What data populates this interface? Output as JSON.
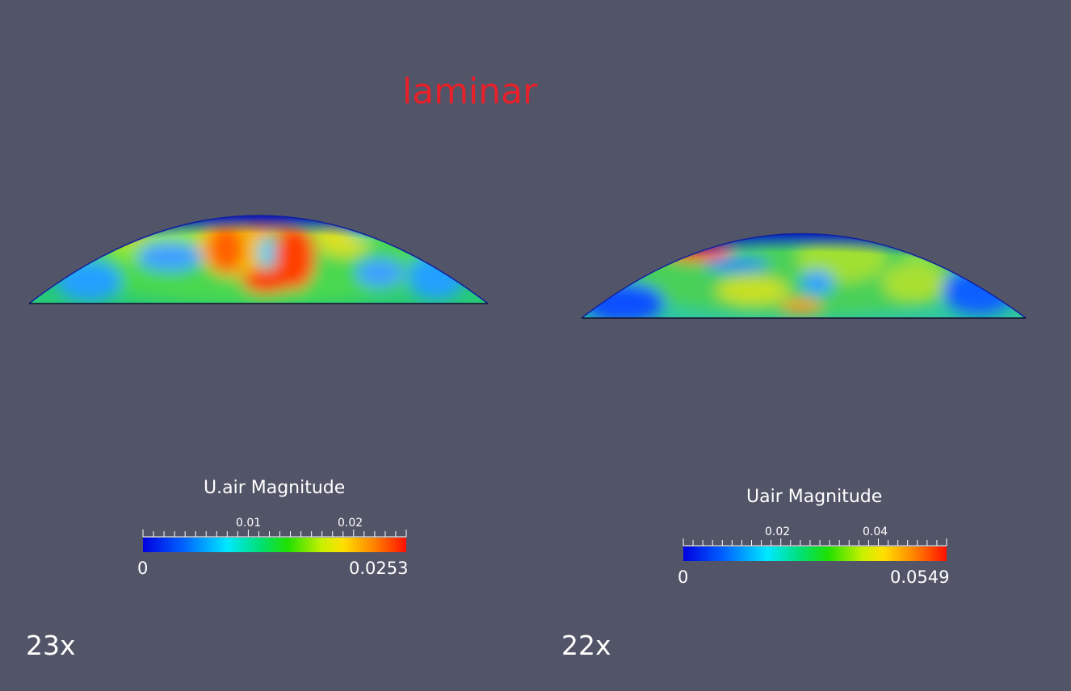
{
  "title": "laminar",
  "colors": {
    "background": "#525468",
    "title": "#e8202a",
    "colormap": [
      "#0000e0",
      "#0060ff",
      "#00e8ff",
      "#00e070",
      "#20e000",
      "#c8f000",
      "#ffe000",
      "#ff8000",
      "#ff1000"
    ]
  },
  "left_view": {
    "case_label": "23x",
    "legend_title": "U.air Magnitude",
    "min_label": "0",
    "max_label": "0.0253",
    "tick_labels": [
      "0.01",
      "0.02"
    ]
  },
  "right_view": {
    "case_label": "22x",
    "legend_title": "Uair Magnitude",
    "min_label": "0",
    "max_label": "0.0549",
    "tick_labels": [
      "0.02",
      "0.04"
    ]
  }
}
